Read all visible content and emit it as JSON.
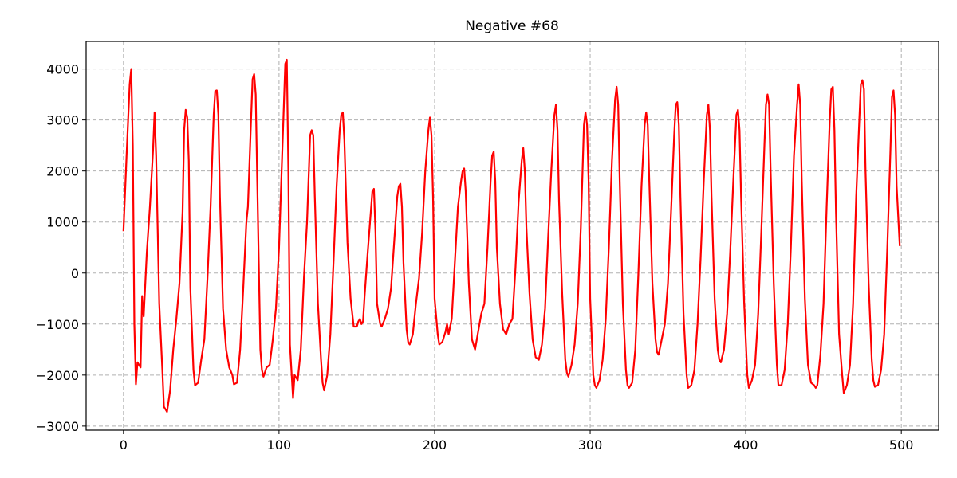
{
  "chart_data": {
    "type": "line",
    "title": "Negative  #68",
    "xlabel": "",
    "ylabel": "",
    "xlim": [
      -24,
      524
    ],
    "ylim": [
      -3080,
      4540
    ],
    "xticks": [
      0,
      100,
      200,
      300,
      400,
      500
    ],
    "xtick_labels": [
      "0",
      "100",
      "200",
      "300",
      "400",
      "500"
    ],
    "yticks": [
      -3000,
      -2000,
      -1000,
      0,
      1000,
      2000,
      3000,
      4000
    ],
    "ytick_labels": [
      "−3000",
      "−2000",
      "−1000",
      "0",
      "1000",
      "2000",
      "3000",
      "4000"
    ],
    "grid": true,
    "line_color": "#ff0000",
    "series": [
      {
        "points": [
          [
            0,
            820
          ],
          [
            2,
            2300
          ],
          [
            4,
            3700
          ],
          [
            5,
            4000
          ],
          [
            6,
            2500
          ],
          [
            7,
            -1000
          ],
          [
            8,
            -2180
          ],
          [
            9,
            -1750
          ],
          [
            10,
            -1800
          ],
          [
            11,
            -1850
          ],
          [
            12,
            -450
          ],
          [
            13,
            -850
          ],
          [
            15,
            400
          ],
          [
            17,
            1300
          ],
          [
            19,
            2400
          ],
          [
            20,
            3150
          ],
          [
            21,
            2300
          ],
          [
            23,
            -600
          ],
          [
            25,
            -1900
          ],
          [
            26,
            -2620
          ],
          [
            28,
            -2720
          ],
          [
            30,
            -2300
          ],
          [
            32,
            -1500
          ],
          [
            34,
            -900
          ],
          [
            36,
            -200
          ],
          [
            38,
            1200
          ],
          [
            39,
            2800
          ],
          [
            40,
            3200
          ],
          [
            41,
            3050
          ],
          [
            42,
            2200
          ],
          [
            43,
            -300
          ],
          [
            45,
            -1900
          ],
          [
            46,
            -2200
          ],
          [
            48,
            -2150
          ],
          [
            50,
            -1700
          ],
          [
            52,
            -1300
          ],
          [
            54,
            -100
          ],
          [
            56,
            1300
          ],
          [
            58,
            3100
          ],
          [
            59,
            3570
          ],
          [
            60,
            3580
          ],
          [
            61,
            3100
          ],
          [
            62,
            1500
          ],
          [
            64,
            -700
          ],
          [
            66,
            -1500
          ],
          [
            68,
            -1850
          ],
          [
            70,
            -2000
          ],
          [
            71,
            -2180
          ],
          [
            73,
            -2150
          ],
          [
            75,
            -1500
          ],
          [
            77,
            -300
          ],
          [
            79,
            1000
          ],
          [
            80,
            1300
          ],
          [
            82,
            3000
          ],
          [
            83,
            3800
          ],
          [
            84,
            3900
          ],
          [
            85,
            3500
          ],
          [
            86,
            1800
          ],
          [
            88,
            -1500
          ],
          [
            89,
            -1900
          ],
          [
            90,
            -2030
          ],
          [
            92,
            -1850
          ],
          [
            94,
            -1800
          ],
          [
            96,
            -1300
          ],
          [
            98,
            -700
          ],
          [
            100,
            500
          ],
          [
            102,
            2300
          ],
          [
            104,
            4100
          ],
          [
            105,
            4180
          ],
          [
            106,
            2000
          ],
          [
            107,
            -1400
          ],
          [
            109,
            -2450
          ],
          [
            110,
            -2000
          ],
          [
            112,
            -2100
          ],
          [
            114,
            -1500
          ],
          [
            116,
            -100
          ],
          [
            118,
            1000
          ],
          [
            120,
            2700
          ],
          [
            121,
            2800
          ],
          [
            122,
            2700
          ],
          [
            123,
            1500
          ],
          [
            125,
            -600
          ],
          [
            127,
            -1700
          ],
          [
            128,
            -2150
          ],
          [
            129,
            -2300
          ],
          [
            131,
            -2000
          ],
          [
            133,
            -1200
          ],
          [
            135,
            200
          ],
          [
            137,
            1700
          ],
          [
            139,
            2800
          ],
          [
            140,
            3100
          ],
          [
            141,
            3150
          ],
          [
            142,
            2600
          ],
          [
            144,
            600
          ],
          [
            146,
            -500
          ],
          [
            148,
            -1050
          ],
          [
            150,
            -1050
          ],
          [
            151,
            -950
          ],
          [
            152,
            -900
          ],
          [
            153,
            -1000
          ],
          [
            154,
            -950
          ],
          [
            155,
            -450
          ],
          [
            157,
            400
          ],
          [
            159,
            1200
          ],
          [
            160,
            1600
          ],
          [
            161,
            1650
          ],
          [
            162,
            800
          ],
          [
            163,
            -600
          ],
          [
            165,
            -1000
          ],
          [
            166,
            -1050
          ],
          [
            168,
            -900
          ],
          [
            170,
            -700
          ],
          [
            172,
            -300
          ],
          [
            174,
            600
          ],
          [
            176,
            1500
          ],
          [
            177,
            1700
          ],
          [
            178,
            1750
          ],
          [
            179,
            1300
          ],
          [
            180,
            200
          ],
          [
            182,
            -1100
          ],
          [
            183,
            -1350
          ],
          [
            184,
            -1400
          ],
          [
            186,
            -1200
          ],
          [
            188,
            -600
          ],
          [
            190,
            -100
          ],
          [
            192,
            800
          ],
          [
            194,
            2000
          ],
          [
            196,
            2800
          ],
          [
            197,
            3050
          ],
          [
            198,
            2700
          ],
          [
            199,
            1500
          ],
          [
            200,
            -500
          ],
          [
            202,
            -1200
          ],
          [
            203,
            -1400
          ],
          [
            205,
            -1350
          ],
          [
            207,
            -1150
          ],
          [
            208,
            -1000
          ],
          [
            209,
            -1200
          ],
          [
            211,
            -900
          ],
          [
            213,
            200
          ],
          [
            215,
            1300
          ],
          [
            217,
            1800
          ],
          [
            218,
            2000
          ],
          [
            219,
            2050
          ],
          [
            220,
            1600
          ],
          [
            222,
            -200
          ],
          [
            224,
            -1300
          ],
          [
            226,
            -1500
          ],
          [
            228,
            -1150
          ],
          [
            230,
            -800
          ],
          [
            232,
            -600
          ],
          [
            234,
            500
          ],
          [
            236,
            1800
          ],
          [
            237,
            2300
          ],
          [
            238,
            2380
          ],
          [
            239,
            1800
          ],
          [
            240,
            500
          ],
          [
            242,
            -600
          ],
          [
            244,
            -1100
          ],
          [
            246,
            -1200
          ],
          [
            248,
            -1000
          ],
          [
            250,
            -900
          ],
          [
            252,
            100
          ],
          [
            254,
            1400
          ],
          [
            256,
            2200
          ],
          [
            257,
            2450
          ],
          [
            258,
            2000
          ],
          [
            259,
            900
          ],
          [
            261,
            -400
          ],
          [
            263,
            -1300
          ],
          [
            265,
            -1650
          ],
          [
            267,
            -1700
          ],
          [
            269,
            -1400
          ],
          [
            271,
            -700
          ],
          [
            273,
            700
          ],
          [
            275,
            2000
          ],
          [
            277,
            3100
          ],
          [
            278,
            3300
          ],
          [
            279,
            2800
          ],
          [
            280,
            1400
          ],
          [
            282,
            -400
          ],
          [
            284,
            -1700
          ],
          [
            285,
            -1950
          ],
          [
            286,
            -2030
          ],
          [
            288,
            -1800
          ],
          [
            290,
            -1400
          ],
          [
            292,
            -600
          ],
          [
            294,
            900
          ],
          [
            296,
            2900
          ],
          [
            297,
            3150
          ],
          [
            298,
            2900
          ],
          [
            299,
            1800
          ],
          [
            300,
            -500
          ],
          [
            302,
            -2000
          ],
          [
            303,
            -2200
          ],
          [
            304,
            -2250
          ],
          [
            306,
            -2100
          ],
          [
            308,
            -1700
          ],
          [
            310,
            -900
          ],
          [
            312,
            500
          ],
          [
            314,
            2200
          ],
          [
            316,
            3400
          ],
          [
            317,
            3650
          ],
          [
            318,
            3300
          ],
          [
            319,
            1800
          ],
          [
            321,
            -600
          ],
          [
            323,
            -1900
          ],
          [
            324,
            -2200
          ],
          [
            325,
            -2250
          ],
          [
            327,
            -2150
          ],
          [
            329,
            -1500
          ],
          [
            331,
            0
          ],
          [
            333,
            1700
          ],
          [
            335,
            2900
          ],
          [
            336,
            3150
          ],
          [
            337,
            2900
          ],
          [
            338,
            1800
          ],
          [
            340,
            -200
          ],
          [
            342,
            -1300
          ],
          [
            343,
            -1550
          ],
          [
            344,
            -1600
          ],
          [
            346,
            -1300
          ],
          [
            348,
            -1000
          ],
          [
            350,
            -200
          ],
          [
            352,
            1200
          ],
          [
            354,
            2700
          ],
          [
            355,
            3300
          ],
          [
            356,
            3350
          ],
          [
            357,
            2900
          ],
          [
            358,
            1500
          ],
          [
            360,
            -800
          ],
          [
            362,
            -2000
          ],
          [
            363,
            -2250
          ],
          [
            365,
            -2200
          ],
          [
            367,
            -1900
          ],
          [
            369,
            -1000
          ],
          [
            371,
            300
          ],
          [
            373,
            1800
          ],
          [
            375,
            3100
          ],
          [
            376,
            3300
          ],
          [
            377,
            2800
          ],
          [
            378,
            1500
          ],
          [
            380,
            -500
          ],
          [
            382,
            -1500
          ],
          [
            383,
            -1700
          ],
          [
            384,
            -1750
          ],
          [
            386,
            -1500
          ],
          [
            388,
            -800
          ],
          [
            390,
            400
          ],
          [
            392,
            1800
          ],
          [
            394,
            3100
          ],
          [
            395,
            3200
          ],
          [
            396,
            2800
          ],
          [
            397,
            1500
          ],
          [
            399,
            -600
          ],
          [
            401,
            -2000
          ],
          [
            402,
            -2250
          ],
          [
            404,
            -2100
          ],
          [
            406,
            -1800
          ],
          [
            408,
            -800
          ],
          [
            410,
            800
          ],
          [
            412,
            2500
          ],
          [
            413,
            3300
          ],
          [
            414,
            3500
          ],
          [
            415,
            3300
          ],
          [
            416,
            2000
          ],
          [
            418,
            -200
          ],
          [
            420,
            -1800
          ],
          [
            421,
            -2200
          ],
          [
            423,
            -2200
          ],
          [
            425,
            -1900
          ],
          [
            427,
            -1000
          ],
          [
            429,
            500
          ],
          [
            431,
            2300
          ],
          [
            433,
            3300
          ],
          [
            434,
            3700
          ],
          [
            435,
            3300
          ],
          [
            436,
            1800
          ],
          [
            438,
            -500
          ],
          [
            440,
            -1800
          ],
          [
            442,
            -2150
          ],
          [
            444,
            -2200
          ],
          [
            445,
            -2250
          ],
          [
            446,
            -2200
          ],
          [
            448,
            -1600
          ],
          [
            450,
            -600
          ],
          [
            452,
            1300
          ],
          [
            454,
            3000
          ],
          [
            455,
            3600
          ],
          [
            456,
            3650
          ],
          [
            457,
            2800
          ],
          [
            458,
            1200
          ],
          [
            460,
            -1200
          ],
          [
            462,
            -2000
          ],
          [
            463,
            -2350
          ],
          [
            465,
            -2200
          ],
          [
            467,
            -1800
          ],
          [
            469,
            -600
          ],
          [
            471,
            1500
          ],
          [
            473,
            3000
          ],
          [
            474,
            3700
          ],
          [
            475,
            3780
          ],
          [
            476,
            3600
          ],
          [
            477,
            2000
          ],
          [
            479,
            -200
          ],
          [
            481,
            -1700
          ],
          [
            482,
            -2100
          ],
          [
            483,
            -2230
          ],
          [
            485,
            -2200
          ],
          [
            487,
            -1900
          ],
          [
            489,
            -1200
          ],
          [
            491,
            500
          ],
          [
            493,
            2400
          ],
          [
            494,
            3450
          ],
          [
            495,
            3580
          ],
          [
            496,
            3100
          ],
          [
            497,
            1700
          ],
          [
            499,
            530
          ]
        ]
      }
    ]
  }
}
